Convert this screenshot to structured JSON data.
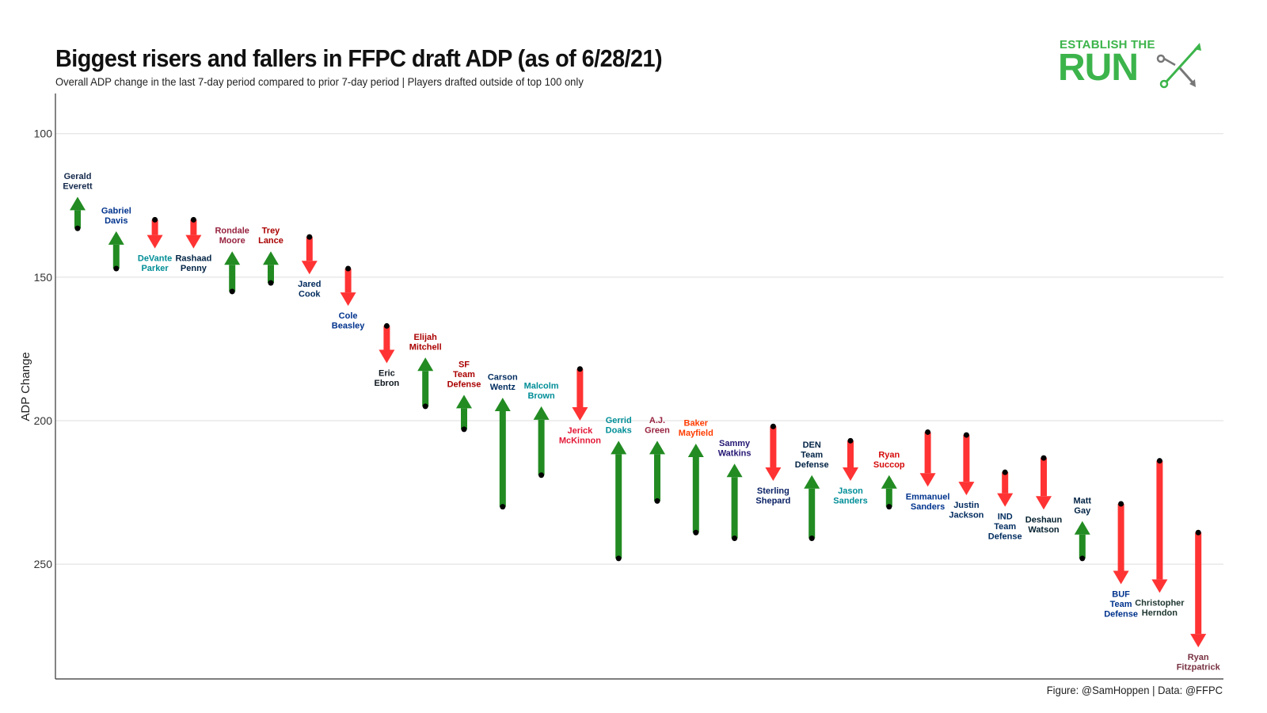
{
  "header": {
    "title": "Biggest risers and fallers in FFPC draft ADP (as of 6/28/21)",
    "subtitle": "Overall ADP change in the last 7-day period compared to prior 7-day period | Players drafted outside of top 100 only"
  },
  "logo": {
    "line1": "ESTABLISH THE",
    "line2": "RUN",
    "mark_icon": "route-arrows-icon"
  },
  "footer": {
    "caption": "Figure: @SamHoppen | Data: @FFPC"
  },
  "colors": {
    "riser": "#228b22",
    "faller": "#ff3333",
    "logo_green": "#3cb44b"
  },
  "chart_data": {
    "type": "arrow",
    "title": "Biggest risers and fallers in FFPC draft ADP (as of 6/28/21)",
    "ylabel": "ADP Change",
    "ylim": [
      86,
      290
    ],
    "y_reversed": true,
    "yticks": [
      100,
      150,
      200,
      250
    ],
    "grid": true,
    "legend": "none",
    "players": [
      {
        "name": [
          "Gerald",
          "Everett"
        ],
        "from": 133,
        "to": 122,
        "label_color": "#13284b"
      },
      {
        "name": [
          "Gabriel",
          "Davis"
        ],
        "from": 147,
        "to": 134,
        "label_color": "#00338d"
      },
      {
        "name": [
          "DeVante",
          "Parker"
        ],
        "from": 130,
        "to": 140,
        "label_color": "#008e97"
      },
      {
        "name": [
          "Rashaad",
          "Penny"
        ],
        "from": 130,
        "to": 140,
        "label_color": "#002244"
      },
      {
        "name": [
          "Rondale",
          "Moore"
        ],
        "from": 155,
        "to": 141,
        "label_color": "#97233f"
      },
      {
        "name": [
          "Trey",
          "Lance"
        ],
        "from": 152,
        "to": 141,
        "label_color": "#aa0000"
      },
      {
        "name": [
          "Jared",
          "Cook"
        ],
        "from": 136,
        "to": 149,
        "label_color": "#002a5c"
      },
      {
        "name": [
          "Cole",
          "Beasley"
        ],
        "from": 147,
        "to": 160,
        "label_color": "#00338d"
      },
      {
        "name": [
          "Eric",
          "Ebron"
        ],
        "from": 167,
        "to": 180,
        "label_color": "#101820"
      },
      {
        "name": [
          "Elijah",
          "Mitchell"
        ],
        "from": 195,
        "to": 178,
        "label_color": "#aa0000"
      },
      {
        "name": [
          "SF",
          "Team",
          "Defense"
        ],
        "from": 203,
        "to": 191,
        "label_color": "#aa0000"
      },
      {
        "name": [
          "Carson",
          "Wentz"
        ],
        "from": 230,
        "to": 192,
        "label_color": "#002c5f"
      },
      {
        "name": [
          "Malcolm",
          "Brown"
        ],
        "from": 219,
        "to": 195,
        "label_color": "#008e97"
      },
      {
        "name": [
          "Jerick",
          "McKinnon"
        ],
        "from": 182,
        "to": 200,
        "label_color": "#e31837"
      },
      {
        "name": [
          "Gerrid",
          "Doaks"
        ],
        "from": 248,
        "to": 207,
        "label_color": "#008e97"
      },
      {
        "name": [
          "A.J.",
          "Green"
        ],
        "from": 228,
        "to": 207,
        "label_color": "#97233f"
      },
      {
        "name": [
          "Baker",
          "Mayfield"
        ],
        "from": 239,
        "to": 208,
        "label_color": "#ff3c00"
      },
      {
        "name": [
          "Sammy",
          "Watkins"
        ],
        "from": 241,
        "to": 215,
        "label_color": "#241773"
      },
      {
        "name": [
          "Sterling",
          "Shepard"
        ],
        "from": 202,
        "to": 221,
        "label_color": "#0b2265"
      },
      {
        "name": [
          "DEN",
          "Team",
          "Defense"
        ],
        "from": 241,
        "to": 219,
        "label_color": "#002244"
      },
      {
        "name": [
          "Jason",
          "Sanders"
        ],
        "from": 207,
        "to": 221,
        "label_color": "#008e97"
      },
      {
        "name": [
          "Ryan",
          "Succop"
        ],
        "from": 230,
        "to": 219,
        "label_color": "#d50a0a"
      },
      {
        "name": [
          "Emmanuel",
          "Sanders"
        ],
        "from": 204,
        "to": 223,
        "label_color": "#00338d"
      },
      {
        "name": [
          "Justin",
          "Jackson"
        ],
        "from": 205,
        "to": 226,
        "label_color": "#002a5e"
      },
      {
        "name": [
          "IND",
          "Team",
          "Defense"
        ],
        "from": 218,
        "to": 230,
        "label_color": "#002c5f"
      },
      {
        "name": [
          "Deshaun",
          "Watson"
        ],
        "from": 213,
        "to": 231,
        "label_color": "#03202f"
      },
      {
        "name": [
          "Matt",
          "Gay"
        ],
        "from": 248,
        "to": 235,
        "label_color": "#002244"
      },
      {
        "name": [
          "BUF",
          "Team",
          "Defense"
        ],
        "from": 229,
        "to": 257,
        "label_color": "#00338d"
      },
      {
        "name": [
          "Christopher",
          "Herndon"
        ],
        "from": 214,
        "to": 260,
        "label_color": "#203731"
      },
      {
        "name": [
          "Ryan",
          "Fitzpatrick"
        ],
        "from": 239,
        "to": 279,
        "label_color": "#773141"
      }
    ]
  }
}
